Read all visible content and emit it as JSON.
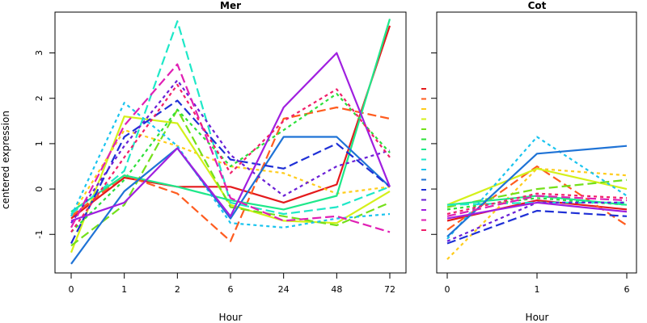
{
  "chart_data": {
    "type": "line",
    "ylabel": "centered expression",
    "ylim": [
      -1.85,
      3.9
    ],
    "yticks": [
      -1,
      0,
      1,
      2,
      3
    ],
    "series_styles": [
      {
        "color": "#e41a1c",
        "dash": "solid"
      },
      {
        "color": "#ff5c1f",
        "dash": "long"
      },
      {
        "color": "#ffcc1a",
        "dash": "dot"
      },
      {
        "color": "#d4f01a",
        "dash": "solid"
      },
      {
        "color": "#74e01a",
        "dash": "long"
      },
      {
        "color": "#2ce03a",
        "dash": "dot"
      },
      {
        "color": "#1ee88a",
        "dash": "solid"
      },
      {
        "color": "#1ee8c8",
        "dash": "long"
      },
      {
        "color": "#1ac4ee",
        "dash": "dot"
      },
      {
        "color": "#1f73d6",
        "dash": "solid"
      },
      {
        "color": "#1f30d6",
        "dash": "long"
      },
      {
        "color": "#6a1fd6",
        "dash": "dot"
      },
      {
        "color": "#a01fe0",
        "dash": "solid"
      },
      {
        "color": "#e01fb4",
        "dash": "long"
      },
      {
        "color": "#f01f6a",
        "dash": "dot"
      }
    ],
    "panels": [
      {
        "title": "Mer",
        "xlabel": "Hour",
        "categories": [
          "0",
          "1",
          "2",
          "6",
          "24",
          "48",
          "72"
        ],
        "series": [
          {
            "values": [
              -0.65,
              0.25,
              0.05,
              0.05,
              -0.3,
              0.1,
              3.6
            ]
          },
          {
            "values": [
              -0.6,
              0.3,
              -0.1,
              -1.15,
              1.55,
              1.8,
              1.55
            ]
          },
          {
            "values": [
              -0.6,
              1.3,
              0.95,
              0.5,
              0.35,
              -0.1,
              0.05
            ]
          },
          {
            "values": [
              -1.4,
              1.6,
              1.45,
              -0.35,
              -0.7,
              -0.75,
              -0.05
            ]
          },
          {
            "values": [
              -1.25,
              -0.35,
              1.75,
              -0.4,
              -0.6,
              -0.8,
              -0.3
            ]
          },
          {
            "values": [
              -0.95,
              0.2,
              1.75,
              0.5,
              1.3,
              2.1,
              0.8
            ]
          },
          {
            "values": [
              -0.5,
              0.3,
              0.05,
              -0.25,
              -0.45,
              -0.15,
              3.75
            ]
          },
          {
            "values": [
              -0.55,
              0.4,
              3.7,
              -0.3,
              -0.55,
              -0.4,
              0.05
            ]
          },
          {
            "values": [
              -0.6,
              1.9,
              0.95,
              -0.75,
              -0.85,
              -0.65,
              -0.55
            ]
          },
          {
            "values": [
              -1.65,
              -0.05,
              0.9,
              -0.65,
              1.15,
              1.15,
              0.05
            ]
          },
          {
            "values": [
              -1.2,
              1.15,
              1.95,
              0.65,
              0.45,
              1.0,
              0.05
            ]
          },
          {
            "values": [
              -0.75,
              0.95,
              2.4,
              0.75,
              -0.15,
              0.5,
              0.85
            ]
          },
          {
            "values": [
              -0.7,
              -0.3,
              0.9,
              -0.6,
              1.8,
              3.0,
              0.05
            ]
          },
          {
            "values": [
              -0.85,
              1.4,
              2.75,
              -0.2,
              -0.7,
              -0.6,
              -0.95
            ]
          },
          {
            "values": [
              -0.95,
              0.7,
              2.3,
              0.35,
              1.5,
              2.2,
              0.7
            ]
          }
        ]
      },
      {
        "title": "Cot",
        "xlabel": "Hour",
        "categories": [
          "0",
          "1",
          "6"
        ],
        "series": [
          {
            "values": [
              -0.7,
              -0.25,
              -0.45
            ]
          },
          {
            "values": [
              -0.9,
              0.5,
              -0.8
            ]
          },
          {
            "values": [
              -1.55,
              0.45,
              0.3
            ]
          },
          {
            "values": [
              -0.35,
              0.45,
              0.0
            ]
          },
          {
            "values": [
              -0.4,
              0.0,
              0.2
            ]
          },
          {
            "values": [
              -0.45,
              -0.2,
              -0.35
            ]
          },
          {
            "values": [
              -0.35,
              -0.15,
              -0.35
            ]
          },
          {
            "values": [
              -0.35,
              -0.3,
              -0.3
            ]
          },
          {
            "values": [
              -1.1,
              1.15,
              -0.15
            ]
          },
          {
            "values": [
              -1.05,
              0.78,
              0.95
            ]
          },
          {
            "values": [
              -1.2,
              -0.48,
              -0.6
            ]
          },
          {
            "values": [
              -1.15,
              -0.3,
              -0.3
            ]
          },
          {
            "values": [
              -0.65,
              -0.3,
              -0.5
            ]
          },
          {
            "values": [
              -0.6,
              -0.15,
              -0.25
            ]
          },
          {
            "values": [
              -0.55,
              -0.1,
              -0.2
            ]
          }
        ]
      }
    ]
  }
}
